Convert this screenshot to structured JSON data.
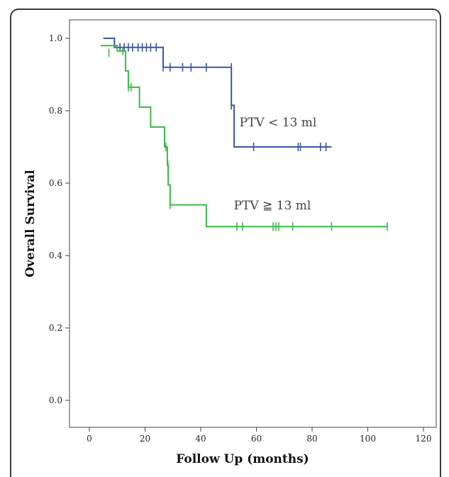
{
  "chart_data": {
    "type": "line",
    "title": "",
    "xlabel": "Follow Up (months)",
    "ylabel": "Overall Survival",
    "xlim": [
      -5,
      120
    ],
    "ylim": [
      0.0,
      1.0
    ],
    "x_ticks": [
      "0",
      "20",
      "40",
      "60",
      "80",
      "100",
      "120"
    ],
    "y_ticks": [
      "0.0",
      "0.2",
      "0.4",
      "0.6",
      "0.8",
      "1.0"
    ],
    "grid": false,
    "series": [
      {
        "name": "PTV < 13 ml",
        "color": "#3a56a5",
        "step_x": [
          5,
          9,
          26.5,
          51,
          52,
          87
        ],
        "step_y": [
          1.0,
          0.975,
          0.92,
          0.815,
          0.7,
          0.7
        ],
        "censored": [
          {
            "x": 11,
            "y": 0.975
          },
          {
            "x": 12.5,
            "y": 0.975
          },
          {
            "x": 14,
            "y": 0.975
          },
          {
            "x": 15.5,
            "y": 0.975
          },
          {
            "x": 17.5,
            "y": 0.975
          },
          {
            "x": 19,
            "y": 0.975
          },
          {
            "x": 20.5,
            "y": 0.975
          },
          {
            "x": 22,
            "y": 0.975
          },
          {
            "x": 24,
            "y": 0.975
          },
          {
            "x": 26.5,
            "y": 0.92
          },
          {
            "x": 29,
            "y": 0.92
          },
          {
            "x": 33.5,
            "y": 0.92
          },
          {
            "x": 36.5,
            "y": 0.92
          },
          {
            "x": 42,
            "y": 0.92
          },
          {
            "x": 51,
            "y": 0.92
          },
          {
            "x": 51,
            "y": 0.815
          },
          {
            "x": 59,
            "y": 0.7
          },
          {
            "x": 75,
            "y": 0.7
          },
          {
            "x": 75.8,
            "y": 0.7
          },
          {
            "x": 83,
            "y": 0.7
          },
          {
            "x": 85,
            "y": 0.7
          }
        ]
      },
      {
        "name": "PTV ≧ 13 ml",
        "color": "#3cb84a",
        "step_x": [
          4,
          10,
          13,
          14,
          18,
          22,
          27,
          28,
          28.3,
          28.8,
          29,
          42,
          107
        ],
        "step_y": [
          0.98,
          0.965,
          0.91,
          0.865,
          0.81,
          0.755,
          0.7,
          0.65,
          0.595,
          0.595,
          0.54,
          0.48,
          0.48
        ],
        "censored": [
          {
            "x": 7,
            "y": 0.96
          },
          {
            "x": 12,
            "y": 0.965
          },
          {
            "x": 14,
            "y": 0.865
          },
          {
            "x": 15,
            "y": 0.865
          },
          {
            "x": 27.5,
            "y": 0.7
          },
          {
            "x": 28.2,
            "y": 0.65
          },
          {
            "x": 29,
            "y": 0.54
          },
          {
            "x": 53,
            "y": 0.48
          },
          {
            "x": 55,
            "y": 0.48
          },
          {
            "x": 66,
            "y": 0.48
          },
          {
            "x": 67,
            "y": 0.48
          },
          {
            "x": 68,
            "y": 0.48
          },
          {
            "x": 73,
            "y": 0.48
          },
          {
            "x": 87,
            "y": 0.48
          },
          {
            "x": 107,
            "y": 0.48
          }
        ]
      }
    ]
  }
}
